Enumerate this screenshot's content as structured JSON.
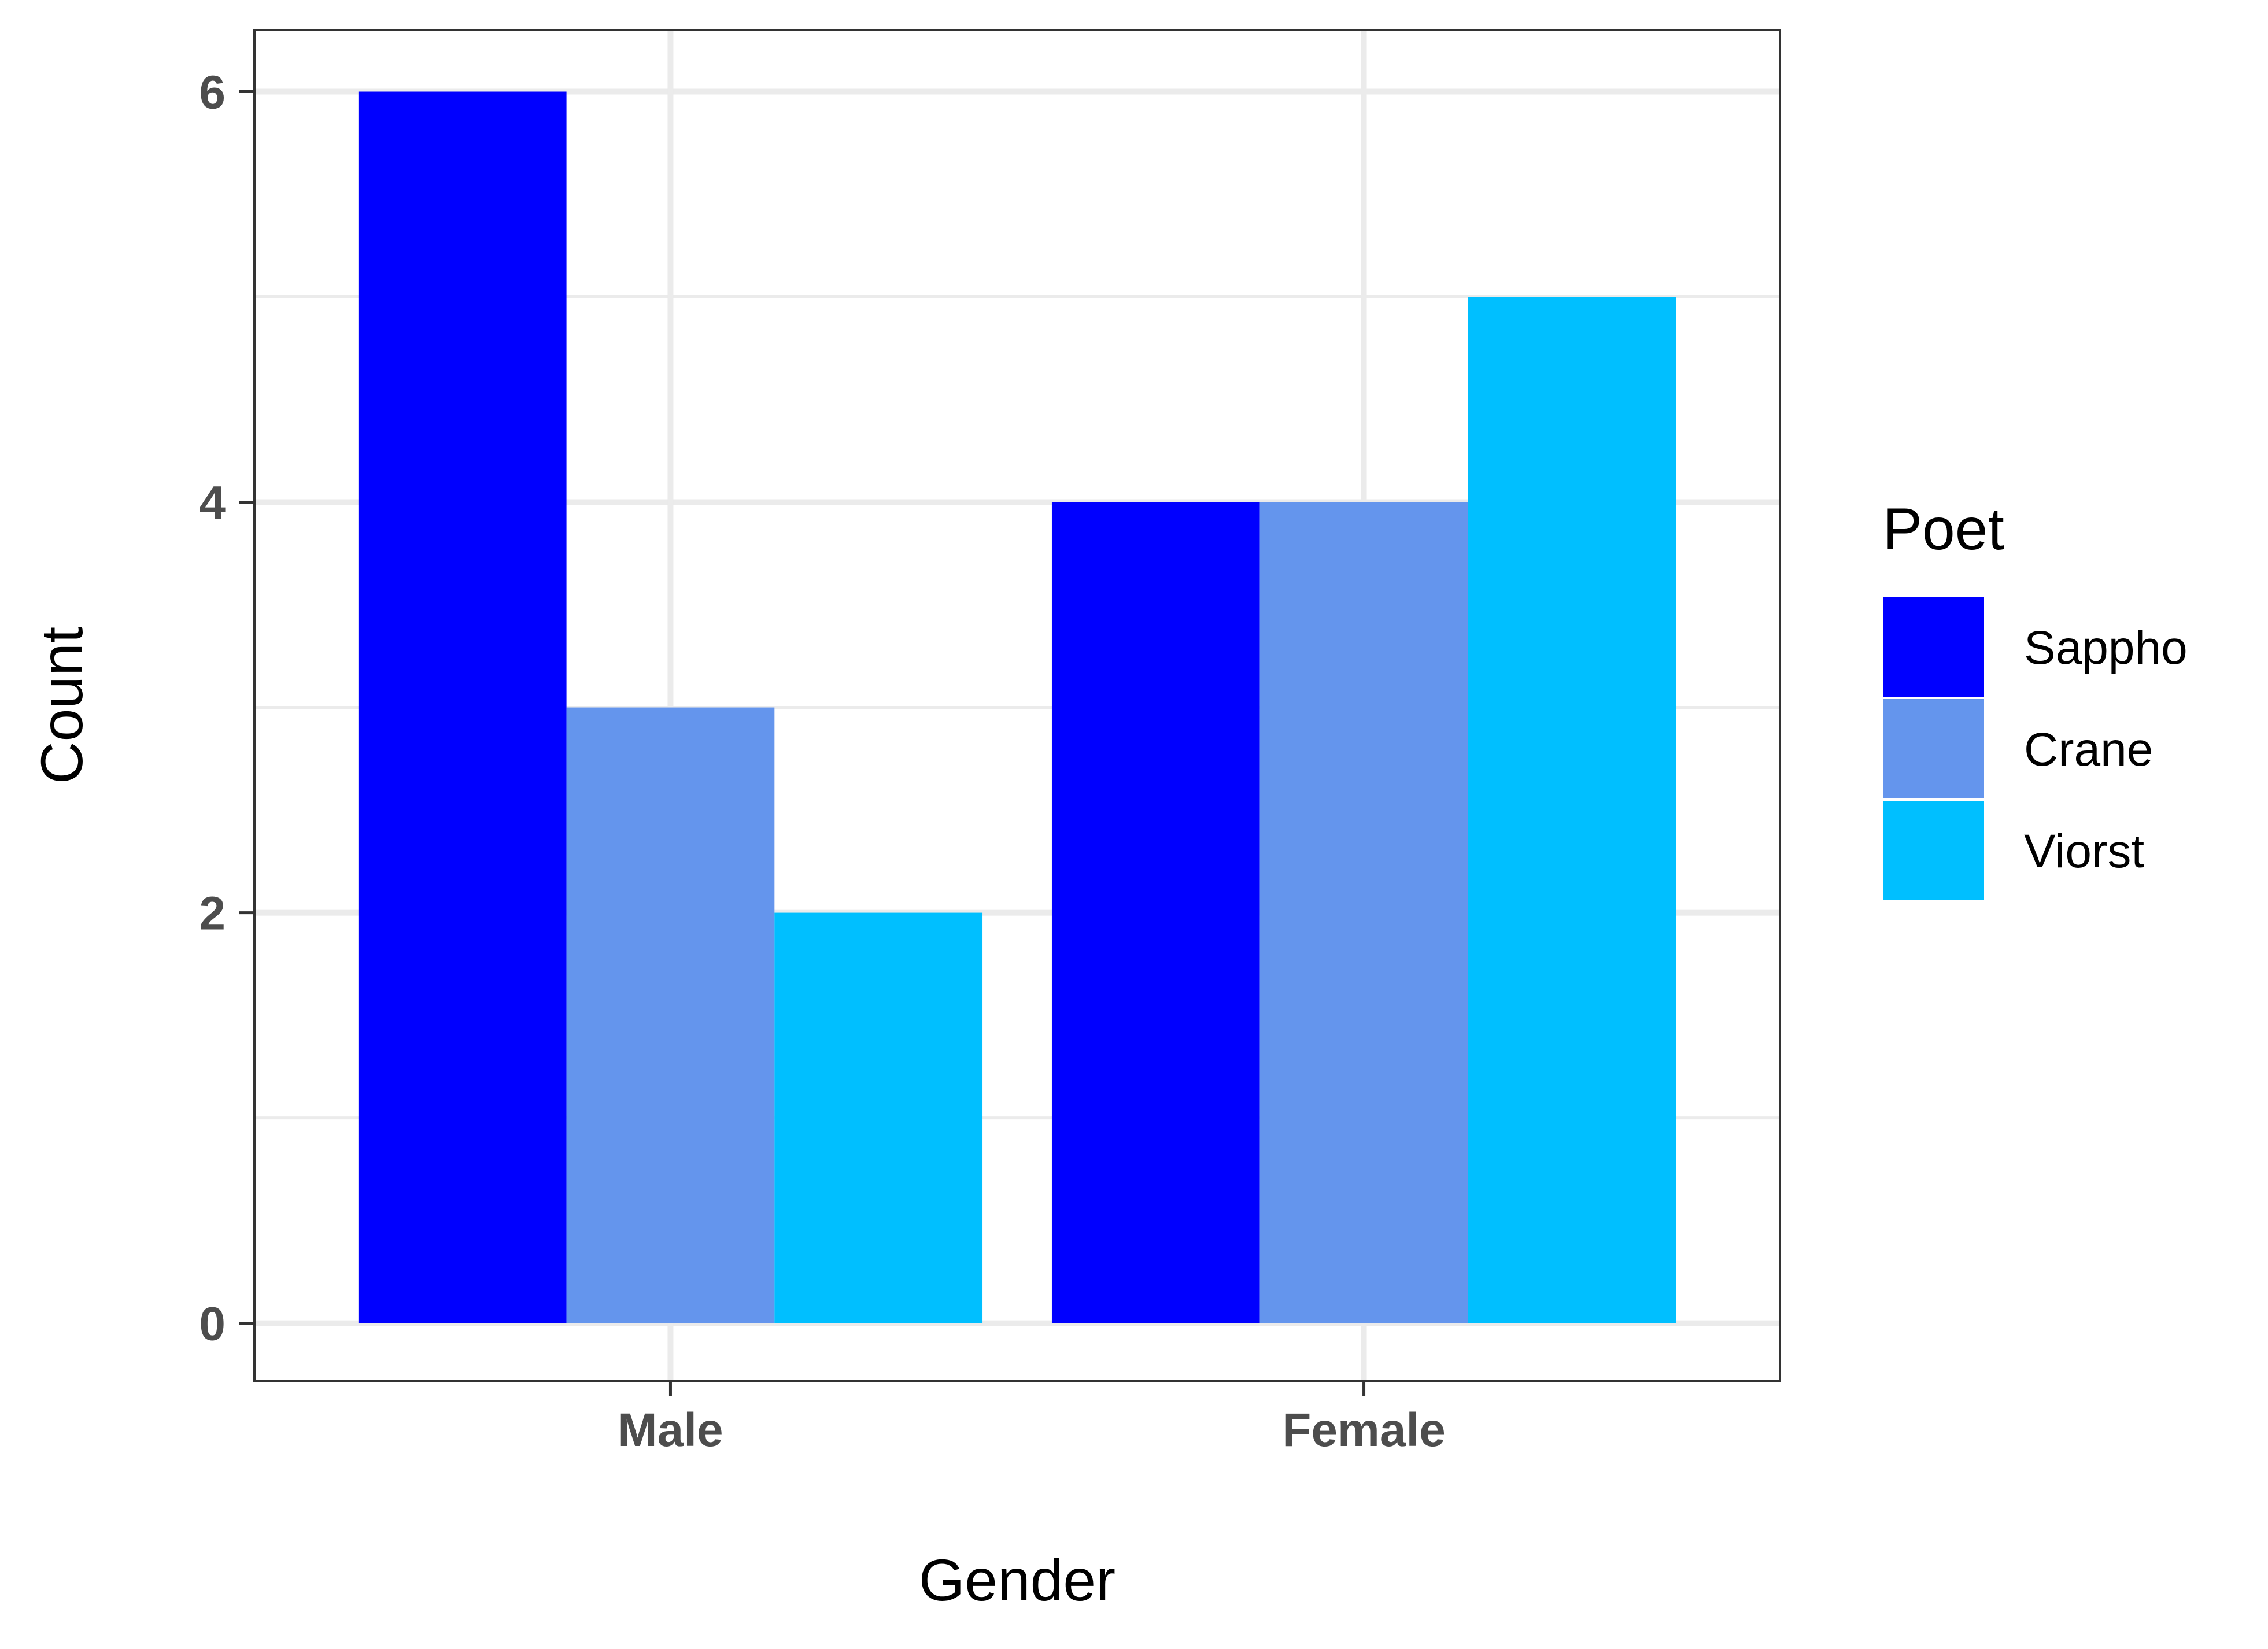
{
  "chart_data": {
    "type": "bar",
    "categories": [
      "Male",
      "Female"
    ],
    "series": [
      {
        "name": "Sappho",
        "values": [
          6,
          4
        ],
        "color": "#0000FF"
      },
      {
        "name": "Crane",
        "values": [
          3,
          4
        ],
        "color": "#6495ED"
      },
      {
        "name": "Viorst",
        "values": [
          2,
          5
        ],
        "color": "#00BFFF"
      }
    ],
    "title": "",
    "xlabel": "Gender",
    "ylabel": "Count",
    "ylim": [
      -0.28,
      6.3
    ],
    "yticks": [
      0,
      2,
      4,
      6
    ],
    "ytick_labels": [
      "0",
      "2",
      "4",
      "6"
    ],
    "grid": true,
    "legend": {
      "title": "Poet",
      "position": "right"
    }
  }
}
